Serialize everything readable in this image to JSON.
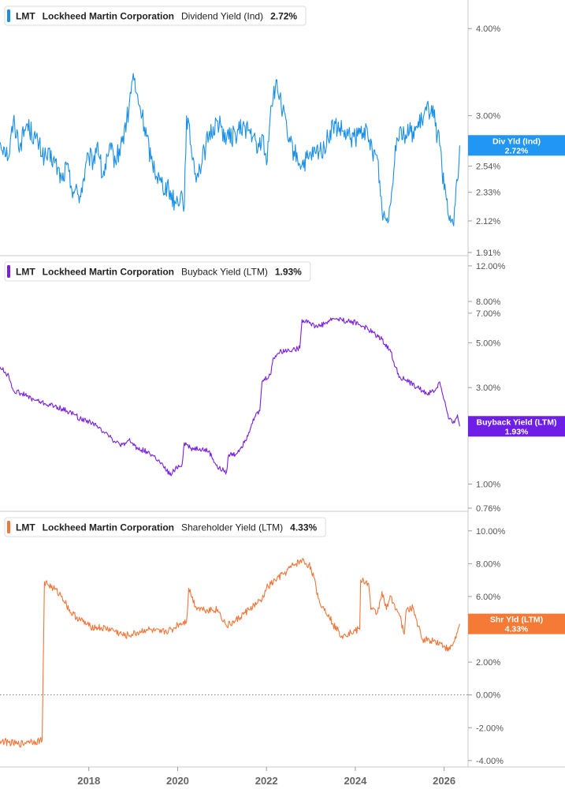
{
  "chart_data": [
    {
      "type": "line",
      "ticker": "LMT",
      "company": "Lockheed Martin Corporation",
      "metric": "Dividend Yield (Ind)",
      "current": "2.72%",
      "badge_label": "Div Yld (Ind)",
      "badge_value": "2.72%",
      "color": "#1a8fe6",
      "badge_color": "#2196f3",
      "y_scale": "log",
      "ylim": [
        1.91,
        4.35
      ],
      "y_ticks": [
        {
          "value": 4.0,
          "label": "4.00%"
        },
        {
          "value": 3.0,
          "label": "3.00%"
        },
        {
          "value": 2.54,
          "label": "2.54%"
        },
        {
          "value": 2.33,
          "label": "2.33%"
        },
        {
          "value": 2.12,
          "label": "2.12%"
        },
        {
          "value": 1.91,
          "label": "1.91%"
        }
      ],
      "series": [
        {
          "x": [
            2016.0,
            2016.1,
            2016.2,
            2016.3,
            2016.45,
            2016.6,
            2016.8,
            2017.0,
            2017.2,
            2017.4,
            2017.5,
            2017.6,
            2017.8,
            2018.0,
            2018.1,
            2018.2,
            2018.3,
            2018.5,
            2018.6,
            2018.75,
            2018.9,
            2019.0,
            2019.05,
            2019.2,
            2019.4,
            2019.6,
            2019.8,
            2019.95,
            2020.1,
            2020.15,
            2020.2,
            2020.3,
            2020.4,
            2020.5,
            2020.7,
            2020.9,
            2021.1,
            2021.3,
            2021.5,
            2021.7,
            2021.8,
            2021.9,
            2022.0,
            2022.1,
            2022.2,
            2022.3,
            2022.5,
            2022.7,
            2022.8,
            2022.95,
            2023.1,
            2023.3,
            2023.5,
            2023.7,
            2023.8,
            2024.0,
            2024.2,
            2024.3,
            2024.5,
            2024.6,
            2024.7,
            2024.8,
            2024.9,
            2025.0,
            2025.1,
            2025.3,
            2025.4,
            2025.5,
            2025.6,
            2025.75,
            2025.8,
            2025.9,
            2026.0,
            2026.1,
            2026.2,
            2026.3,
            2026.35
          ],
          "y": [
            2.75,
            2.7,
            2.62,
            2.95,
            2.72,
            2.92,
            2.78,
            2.62,
            2.6,
            2.42,
            2.55,
            2.38,
            2.3,
            2.62,
            2.58,
            2.75,
            2.45,
            2.68,
            2.58,
            2.75,
            3.05,
            3.45,
            3.25,
            3.0,
            2.6,
            2.42,
            2.35,
            2.25,
            2.32,
            2.22,
            3.0,
            2.72,
            2.48,
            2.52,
            2.8,
            2.95,
            2.78,
            2.82,
            2.9,
            2.8,
            2.66,
            2.82,
            2.55,
            3.1,
            3.3,
            3.2,
            2.75,
            2.6,
            2.55,
            2.6,
            2.65,
            2.7,
            2.9,
            2.85,
            2.8,
            2.78,
            2.88,
            2.75,
            2.6,
            2.2,
            2.12,
            2.25,
            2.72,
            2.88,
            2.82,
            2.85,
            2.88,
            2.95,
            3.05,
            3.1,
            2.9,
            2.72,
            2.35,
            2.15,
            2.1,
            2.42,
            2.72
          ]
        }
      ]
    },
    {
      "type": "line",
      "ticker": "LMT",
      "company": "Lockheed Martin Corporation",
      "metric": "Buyback Yield (LTM)",
      "current": "1.93%",
      "badge_label": "Buyback Yield (LTM)",
      "badge_value": "1.93%",
      "color": "#7b1fe0",
      "badge_color": "#6e1ee6",
      "y_scale": "log",
      "ylim": [
        0.76,
        13.0
      ],
      "y_ticks": [
        {
          "value": 12.0,
          "label": "12.00%"
        },
        {
          "value": 8.0,
          "label": "8.00%"
        },
        {
          "value": 7.0,
          "label": "7.00%"
        },
        {
          "value": 5.0,
          "label": "5.00%"
        },
        {
          "value": 3.0,
          "label": "3.00%"
        },
        {
          "value": 1.0,
          "label": "1.00%"
        },
        {
          "value": 0.76,
          "label": "0.76%"
        }
      ],
      "series": [
        {
          "x": [
            2016.0,
            2016.2,
            2016.3,
            2016.5,
            2016.7,
            2016.8,
            2017.0,
            2017.3,
            2017.5,
            2017.7,
            2017.8,
            2018.0,
            2018.1,
            2018.2,
            2018.4,
            2018.5,
            2018.6,
            2018.8,
            2018.9,
            2019.1,
            2019.3,
            2019.5,
            2019.7,
            2019.85,
            2019.95,
            2020.1,
            2020.15,
            2020.3,
            2020.5,
            2020.7,
            2020.9,
            2021.1,
            2021.15,
            2021.3,
            2021.5,
            2021.6,
            2021.7,
            2021.85,
            2021.9,
            2022.1,
            2022.15,
            2022.3,
            2022.5,
            2022.75,
            2022.8,
            2022.95,
            2023.1,
            2023.3,
            2023.5,
            2023.7,
            2023.8,
            2024.0,
            2024.2,
            2024.4,
            2024.6,
            2024.8,
            2024.9,
            2025.0,
            2025.2,
            2025.4,
            2025.6,
            2025.8,
            2025.9,
            2026.0,
            2026.1,
            2026.2,
            2026.3,
            2026.35
          ],
          "y": [
            3.8,
            3.4,
            2.9,
            2.8,
            2.65,
            2.6,
            2.5,
            2.4,
            2.3,
            2.2,
            2.1,
            2.05,
            2.0,
            1.9,
            1.8,
            1.7,
            1.6,
            1.55,
            1.65,
            1.5,
            1.45,
            1.35,
            1.2,
            1.1,
            1.2,
            1.25,
            1.6,
            1.5,
            1.5,
            1.45,
            1.2,
            1.15,
            1.4,
            1.4,
            1.6,
            1.8,
            2.1,
            2.3,
            3.2,
            3.5,
            4.2,
            4.5,
            4.6,
            4.7,
            6.5,
            6.4,
            6.0,
            6.2,
            6.6,
            6.5,
            6.4,
            6.3,
            6.0,
            5.6,
            5.2,
            4.5,
            3.8,
            3.4,
            3.2,
            3.0,
            2.8,
            2.9,
            3.2,
            2.6,
            2.1,
            2.0,
            2.2,
            1.93
          ]
        }
      ]
    },
    {
      "type": "line",
      "ticker": "LMT",
      "company": "Lockheed Martin Corporation",
      "metric": "Shareholder Yield (LTM)",
      "current": "4.33%",
      "badge_label": "Shr Yld (LTM)",
      "badge_value": "4.33%",
      "color": "#f0763a",
      "badge_color": "#f47a35",
      "y_scale": "linear",
      "ylim": [
        -4.2,
        11.0
      ],
      "y_ticks": [
        {
          "value": 10.0,
          "label": "10.00%"
        },
        {
          "value": 8.0,
          "label": "8.00%"
        },
        {
          "value": 6.0,
          "label": "6.00%"
        },
        {
          "value": 4.0,
          "label": "4.00%"
        },
        {
          "value": 2.0,
          "label": "2.00%"
        },
        {
          "value": 0.0,
          "label": "0.00%"
        },
        {
          "value": -2.0,
          "label": "-2.00%"
        },
        {
          "value": -4.0,
          "label": "-4.00%"
        }
      ],
      "zero_line": true,
      "series": [
        {
          "x": [
            2016.0,
            2016.2,
            2016.4,
            2016.55,
            2016.6,
            2016.65,
            2016.8,
            2016.95,
            2017.0,
            2017.2,
            2017.4,
            2017.6,
            2017.8,
            2018.0,
            2018.2,
            2018.5,
            2018.8,
            2019.0,
            2019.3,
            2019.6,
            2019.9,
            2020.0,
            2020.2,
            2020.25,
            2020.4,
            2020.6,
            2020.9,
            2021.1,
            2021.3,
            2021.6,
            2021.8,
            2021.9,
            2022.0,
            2022.2,
            2022.4,
            2022.6,
            2022.8,
            2023.0,
            2023.2,
            2023.4,
            2023.5,
            2023.7,
            2023.75,
            2023.9,
            2024.1,
            2024.12,
            2024.3,
            2024.35,
            2024.5,
            2024.6,
            2024.7,
            2024.8,
            2025.0,
            2025.1,
            2025.15,
            2025.3,
            2025.5,
            2025.8,
            2026.0,
            2026.1,
            2026.2,
            2026.3,
            2026.35
          ],
          "y": [
            -2.8,
            -2.9,
            -3.0,
            -2.95,
            -2.85,
            -2.8,
            -2.85,
            -2.75,
            6.9,
            6.5,
            6.0,
            5.0,
            4.6,
            4.2,
            4.1,
            4.0,
            3.6,
            3.7,
            4.0,
            3.8,
            4.0,
            4.3,
            4.5,
            6.5,
            5.4,
            5.2,
            5.2,
            4.2,
            4.5,
            5.2,
            5.6,
            5.8,
            6.5,
            7.0,
            7.4,
            7.9,
            8.2,
            7.8,
            5.6,
            4.9,
            4.3,
            3.6,
            3.7,
            3.8,
            4.0,
            7.0,
            6.8,
            5.2,
            5.0,
            6.3,
            5.2,
            6.0,
            4.8,
            3.7,
            5.2,
            5.3,
            3.4,
            3.3,
            3.0,
            2.7,
            3.1,
            3.8,
            4.33
          ]
        }
      ]
    }
  ],
  "x_axis": {
    "ticks": [
      {
        "value": 2018,
        "label": "2018"
      },
      {
        "value": 2020,
        "label": "2020"
      },
      {
        "value": 2022,
        "label": "2022"
      },
      {
        "value": 2024,
        "label": "2024"
      },
      {
        "value": 2026,
        "label": "2026"
      }
    ],
    "xlim": [
      2016.0,
      2026.45
    ]
  }
}
